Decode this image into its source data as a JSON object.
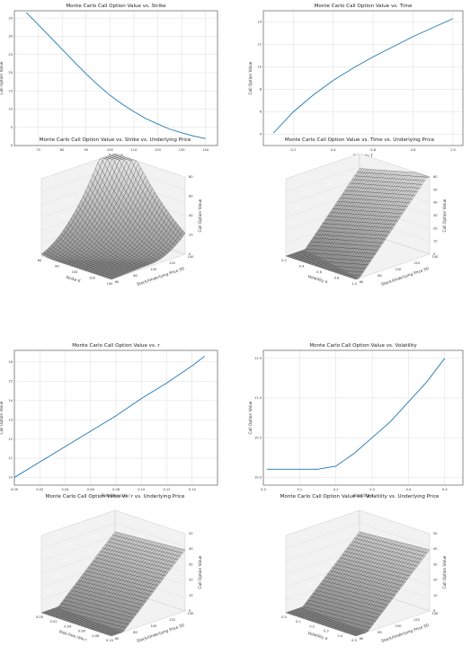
{
  "chart_data": [
    {
      "type": "line",
      "title": "Monte Carlo Call Option Value vs. Strike",
      "xlabel": "Strike K",
      "ylabel": "Call Option Value",
      "xlim": [
        60,
        145
      ],
      "ylim": [
        0,
        37
      ],
      "x_ticks": [
        70,
        80,
        90,
        100,
        110,
        120,
        130,
        140
      ],
      "y_ticks": [
        0,
        5,
        10,
        15,
        20,
        25,
        30,
        35
      ],
      "grid": true,
      "color": "#1f77b4",
      "x": [
        65,
        70,
        75,
        80,
        85,
        90,
        95,
        100,
        105,
        110,
        115,
        120,
        125,
        130,
        135,
        140
      ],
      "y": [
        36.5,
        33.2,
        29.8,
        26.4,
        23.0,
        19.7,
        16.6,
        13.8,
        11.4,
        9.3,
        7.4,
        5.9,
        4.5,
        3.5,
        2.6,
        1.9
      ]
    },
    {
      "type": "line",
      "title": "Monte Carlo Call Option Value vs. Time",
      "xlabel": "Maturity T",
      "ylabel": "Call Option Value",
      "xlim": [
        0.05,
        1.05
      ],
      "ylim": [
        3,
        15
      ],
      "x_ticks": [
        0.2,
        0.4,
        0.6,
        0.8,
        1.0
      ],
      "y_ticks": [
        4,
        6,
        8,
        10,
        12,
        14
      ],
      "grid": true,
      "color": "#1f77b4",
      "x": [
        0.1,
        0.2,
        0.3,
        0.4,
        0.5,
        0.6,
        0.7,
        0.8,
        0.9,
        1.0
      ],
      "y": [
        4.1,
        6.0,
        7.5,
        8.8,
        9.9,
        10.9,
        11.8,
        12.7,
        13.5,
        14.3
      ]
    },
    {
      "type": "surface",
      "title": "Monte Carlo Call Option Value vs. Strike vs. Underlying Price",
      "xlabel": "Strike K",
      "ylabel": "Stock/Underlying Price S0",
      "zlabel": "Call Option Value",
      "x_ticks": [
        "60",
        "80",
        "100",
        "120",
        "140"
      ],
      "y_ticks": [
        "60",
        "80",
        "100",
        "120",
        "140"
      ],
      "z_ticks": [
        "0",
        "20",
        "40",
        "60",
        "80"
      ],
      "shape": "bowl"
    },
    {
      "type": "surface",
      "title": "Monte Carlo Call Option Value vs. Time vs. Underlying Price",
      "xlabel": "Volatility σ",
      "ylabel": "Stock/Underlying Price S0",
      "zlabel": "Call Option Value",
      "x_ticks": [
        "0.2",
        "0.4",
        "0.6",
        "0.8",
        "1.0"
      ],
      "y_ticks": [
        "60",
        "80",
        "100",
        "120",
        "140"
      ],
      "z_ticks": [
        "0",
        "10",
        "20",
        "30",
        "40",
        "50",
        "60"
      ],
      "shape": "ramp"
    },
    {
      "type": "line",
      "title": "Monte Carlo Call Option Value vs. r",
      "xlabel": "Risk-free rate r",
      "ylabel": "Call Option Value",
      "xlim": [
        0.0,
        0.16
      ],
      "ylim": [
        9.6,
        16.6
      ],
      "x_ticks": [
        0.0,
        0.02,
        0.04,
        0.06,
        0.08,
        0.1,
        0.12,
        0.14
      ],
      "y_ticks": [
        10,
        11,
        12,
        13,
        14,
        15,
        16
      ],
      "grid": true,
      "color": "#1f77b4",
      "x": [
        0.0,
        0.02,
        0.04,
        0.06,
        0.08,
        0.1,
        0.12,
        0.14,
        0.15
      ],
      "y": [
        10.0,
        10.8,
        11.6,
        12.4,
        13.2,
        14.1,
        14.9,
        15.8,
        16.3
      ]
    },
    {
      "type": "line",
      "title": "Monte Carlo Call Option Value vs. Volatility",
      "xlabel": "Volatility σ",
      "ylabel": "Call Option Value",
      "xlim": [
        0.0,
        0.55
      ],
      "ylim": [
        9.9,
        11.6
      ],
      "x_ticks": [
        0.0,
        0.1,
        0.2,
        0.3,
        0.4,
        0.5
      ],
      "y_ticks": [
        10.0,
        10.5,
        11.0,
        11.5
      ],
      "grid": true,
      "color": "#1f77b4",
      "x": [
        0.01,
        0.05,
        0.1,
        0.15,
        0.2,
        0.25,
        0.3,
        0.35,
        0.4,
        0.45,
        0.5
      ],
      "y": [
        10.1,
        10.1,
        10.1,
        10.1,
        10.14,
        10.3,
        10.5,
        10.7,
        10.95,
        11.2,
        11.5
      ]
    },
    {
      "type": "surface",
      "title": "Monte Carlo Call Option Value vs. r vs. Underlying Price",
      "xlabel": "Risk-free rate r",
      "ylabel": "Stock/Underlying Price S0",
      "zlabel": "Call Option Value",
      "x_ticks": [
        "0.00",
        "0.02",
        "0.04",
        "0.06",
        "0.08",
        "0.10"
      ],
      "y_ticks": [
        "60",
        "80",
        "100",
        "120",
        "140"
      ],
      "z_ticks": [
        "0",
        "10",
        "20",
        "30",
        "40",
        "50"
      ],
      "shape": "slope"
    },
    {
      "type": "surface",
      "title": "Monte Carlo Call Option Value vs. Volatility vs. Underlying Price",
      "xlabel": "Volatility σ",
      "ylabel": "Stock/Underlying Price S0",
      "zlabel": "Call Option Value",
      "x_ticks": [
        "0.0",
        "0.1",
        "0.2",
        "0.3",
        "0.4",
        "0.5"
      ],
      "y_ticks": [
        "60",
        "80",
        "100",
        "120",
        "140"
      ],
      "z_ticks": [
        "0",
        "10",
        "20",
        "30",
        "40",
        "50"
      ],
      "shape": "slope"
    }
  ]
}
